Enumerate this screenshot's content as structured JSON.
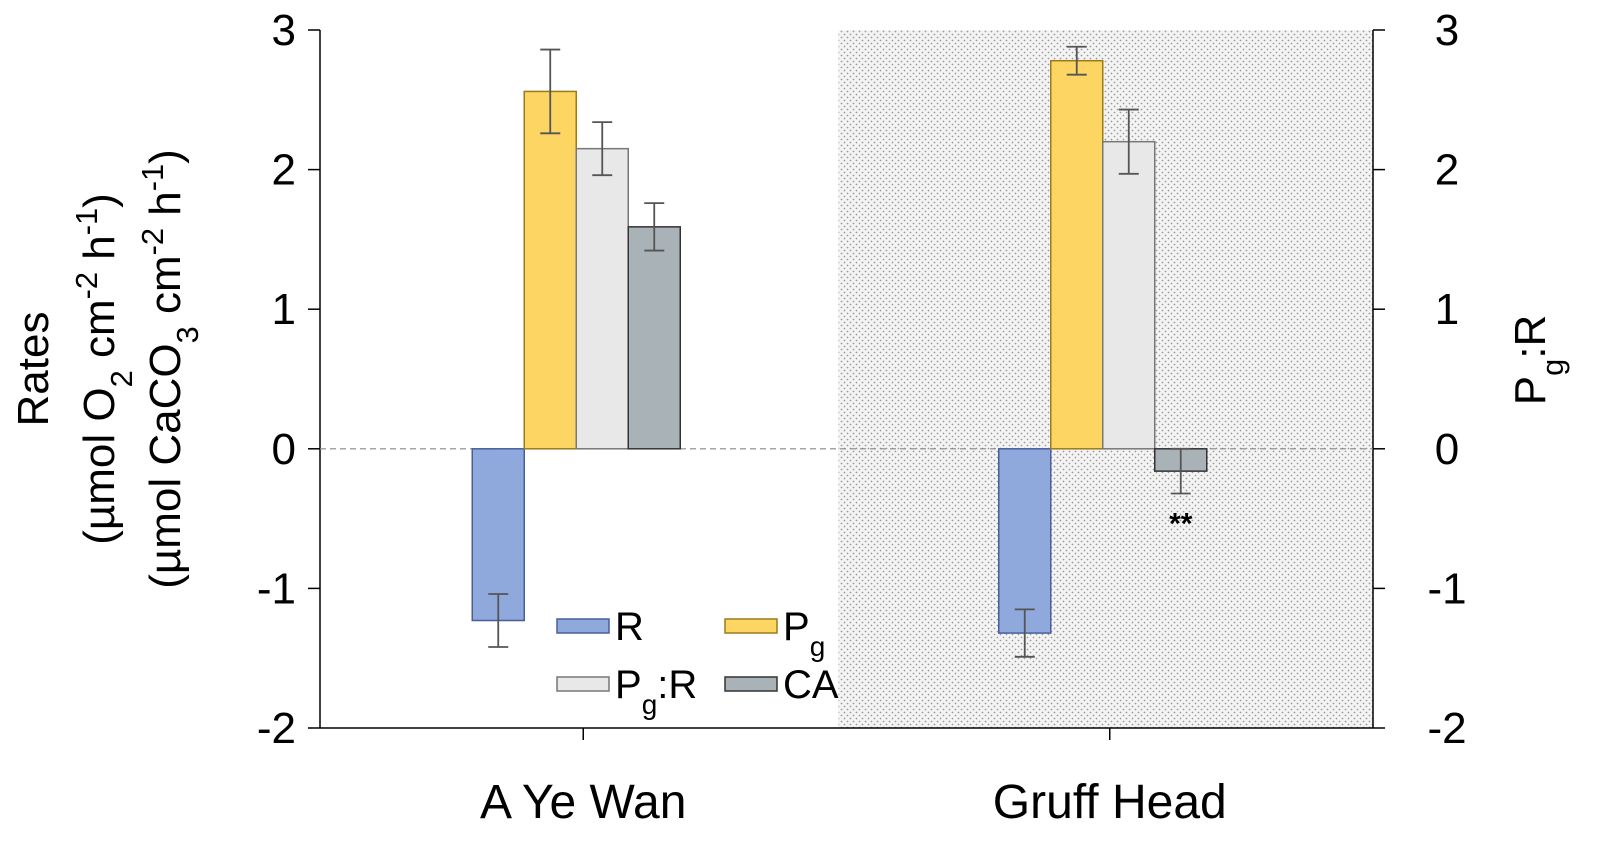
{
  "chart_data": {
    "type": "bar",
    "categories": [
      "A Ye Wan",
      "Gruff Head"
    ],
    "series": [
      {
        "name": "R",
        "color": "#8fa9dc",
        "values": [
          -1.23,
          -1.32
        ],
        "errors": [
          0.19,
          0.17
        ]
      },
      {
        "name": "Pg",
        "color": "#fdd562",
        "values": [
          2.56,
          2.78
        ],
        "errors": [
          0.3,
          0.1
        ]
      },
      {
        "name": "Pg:R",
        "color": "#e8e8e8",
        "values": [
          2.15,
          2.2
        ],
        "errors": [
          0.19,
          0.23
        ],
        "axis": "y2"
      },
      {
        "name": "CA",
        "color": "#a9b2b7",
        "values": [
          1.59,
          -0.16
        ],
        "errors": [
          0.17,
          0.16
        ]
      }
    ],
    "ylabel": [
      "Rates",
      "(µmol O2 cm-2 h-1)",
      "(µmol CaCO3 cm-2 h-1)"
    ],
    "y2label": "Pg:R",
    "ylim": [
      -2,
      3
    ],
    "yticks": [
      -2,
      -1,
      0,
      1,
      2,
      3
    ],
    "y2lim": [
      -2,
      3
    ],
    "y2ticks": [
      -2,
      -1,
      0,
      1,
      2,
      3
    ],
    "annotations": [
      {
        "text": "**",
        "category": 1,
        "series": 3
      }
    ],
    "shaded_category": 1,
    "legend": "lower-center"
  }
}
